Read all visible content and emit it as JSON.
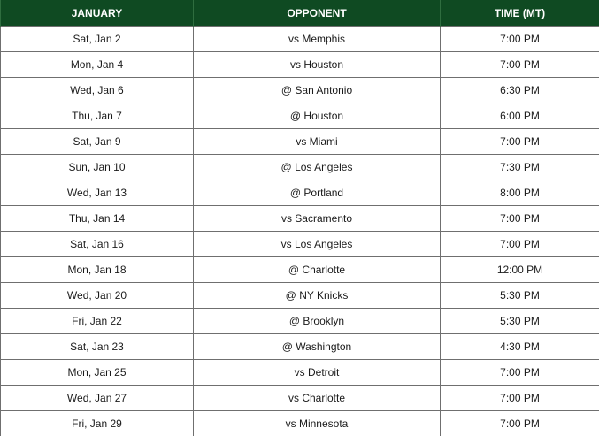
{
  "header": {
    "month": "JANUARY",
    "opponent": "OPPONENT",
    "time": "TIME (MT)"
  },
  "colors": {
    "header_bg": "#0f4a22",
    "header_text": "#ffffff",
    "grid": "#6f6f6f"
  },
  "rows": [
    {
      "date": "Sat, Jan 2",
      "opponent": "vs Memphis",
      "time": "7:00 PM"
    },
    {
      "date": "Mon, Jan 4",
      "opponent": "vs Houston",
      "time": "7:00 PM"
    },
    {
      "date": "Wed, Jan 6",
      "opponent": "@ San Antonio",
      "time": "6:30 PM"
    },
    {
      "date": "Thu, Jan 7",
      "opponent": "@ Houston",
      "time": "6:00 PM"
    },
    {
      "date": "Sat, Jan 9",
      "opponent": "vs Miami",
      "time": "7:00 PM"
    },
    {
      "date": "Sun, Jan 10",
      "opponent": "@ Los Angeles",
      "time": "7:30 PM"
    },
    {
      "date": "Wed, Jan 13",
      "opponent": "@ Portland",
      "time": "8:00 PM"
    },
    {
      "date": "Thu, Jan 14",
      "opponent": "vs Sacramento",
      "time": "7:00 PM"
    },
    {
      "date": "Sat, Jan 16",
      "opponent": "vs Los Angeles",
      "time": "7:00 PM"
    },
    {
      "date": "Mon, Jan 18",
      "opponent": "@ Charlotte",
      "time": "12:00 PM"
    },
    {
      "date": "Wed, Jan 20",
      "opponent": "@ NY Knicks",
      "time": "5:30 PM"
    },
    {
      "date": "Fri, Jan 22",
      "opponent": "@ Brooklyn",
      "time": "5:30 PM"
    },
    {
      "date": "Sat, Jan 23",
      "opponent": "@ Washington",
      "time": "4:30 PM"
    },
    {
      "date": "Mon, Jan 25",
      "opponent": "vs Detroit",
      "time": "7:00 PM"
    },
    {
      "date": "Wed, Jan 27",
      "opponent": "vs Charlotte",
      "time": "7:00 PM"
    },
    {
      "date": "Fri, Jan 29",
      "opponent": "vs Minnesota",
      "time": "7:00 PM"
    }
  ]
}
